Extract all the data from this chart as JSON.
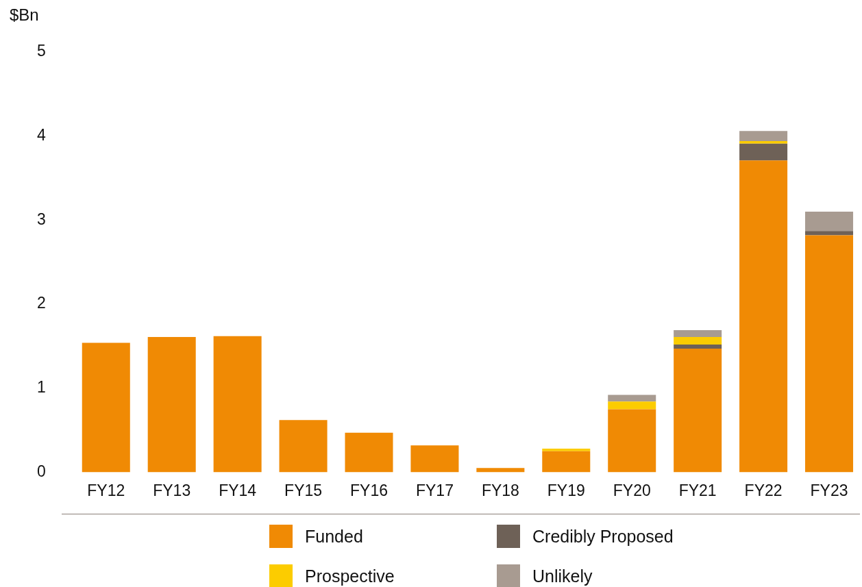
{
  "chart_data": {
    "type": "bar",
    "ylabel": "$Bn",
    "stacked": true,
    "categories": [
      "FY12",
      "FY13",
      "FY14",
      "FY15",
      "FY16",
      "FY17",
      "FY18",
      "FY19",
      "FY20",
      "FY21",
      "FY22",
      "FY23"
    ],
    "series": [
      {
        "name": "Funded",
        "color": "#f08a04",
        "values": [
          1.54,
          1.61,
          1.62,
          0.62,
          0.47,
          0.32,
          0.05,
          0.25,
          0.75,
          1.47,
          3.71,
          2.82
        ]
      },
      {
        "name": "Credibly Proposed",
        "color": "#6e6157",
        "values": [
          0,
          0,
          0,
          0,
          0,
          0,
          0,
          0,
          0,
          0.05,
          0.2,
          0.05
        ]
      },
      {
        "name": "Prospective",
        "color": "#fccc00",
        "values": [
          0,
          0,
          0,
          0,
          0,
          0,
          0,
          0.03,
          0.09,
          0.09,
          0.03,
          0
        ]
      },
      {
        "name": "Unlikely",
        "color": "#a89b91",
        "values": [
          0,
          0,
          0,
          0,
          0,
          0,
          0,
          0,
          0.08,
          0.08,
          0.12,
          0.23
        ]
      }
    ],
    "ylim": [
      0,
      5
    ],
    "yticks": [
      0,
      1,
      2,
      3,
      4,
      5
    ],
    "grid": false,
    "legend": "bottom"
  }
}
